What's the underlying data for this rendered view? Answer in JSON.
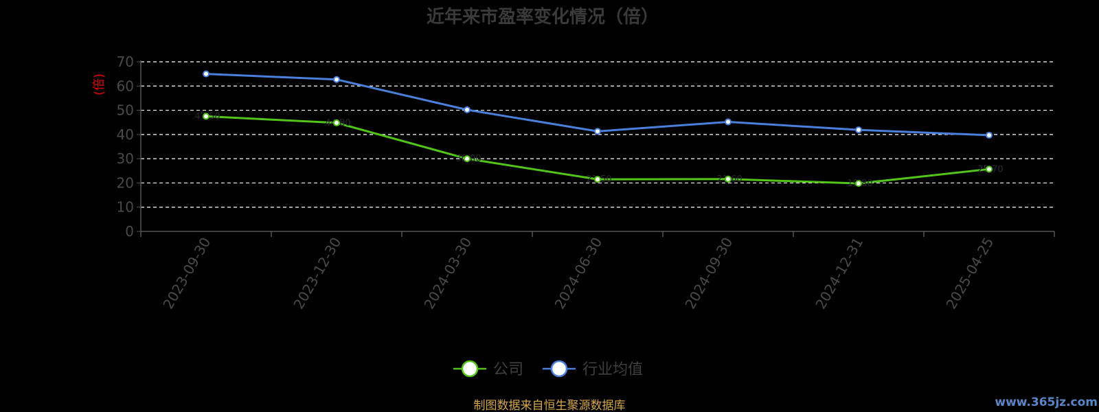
{
  "chart_data": {
    "type": "line",
    "title": "近年来市盈率变化情况（倍）",
    "ylabel": "(倍)",
    "xlabel": "",
    "ylim": [
      0,
      70
    ],
    "yticks": [
      0,
      10,
      20,
      30,
      40,
      50,
      60,
      70
    ],
    "grid": true,
    "legend_position": "bottom",
    "categories": [
      "2023-09-30",
      "2023-12-30",
      "2024-03-30",
      "2024-06-30",
      "2024-09-30",
      "2024-12-31",
      "2025-04-25"
    ],
    "series": [
      {
        "name": "公司",
        "color": "#52c41a",
        "values": [
          47.5,
          44.8,
          30.0,
          21.5,
          21.6,
          19.8,
          25.7
        ]
      },
      {
        "name": "行业均值",
        "color": "#4a7fdc",
        "values": [
          65.0,
          62.7,
          50.2,
          41.3,
          45.2,
          41.9,
          39.7
        ]
      }
    ]
  },
  "footer": {
    "source": "制图数据来自恒生聚源数据库",
    "watermark": "www.365jz.com"
  }
}
